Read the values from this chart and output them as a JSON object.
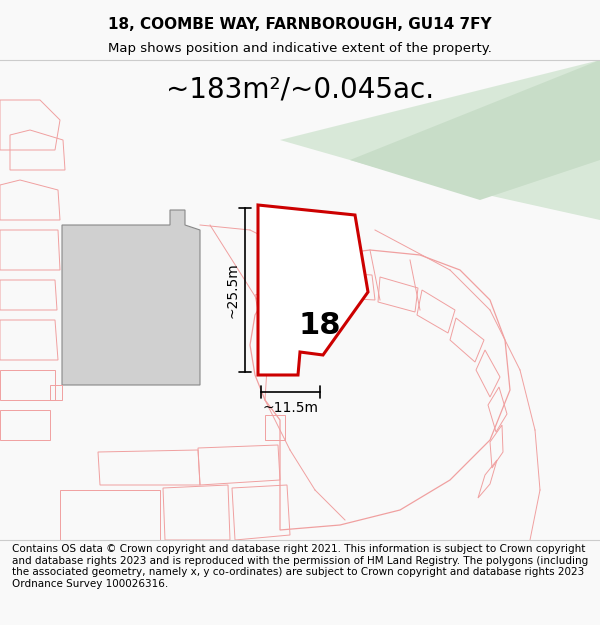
{
  "title_line1": "18, COOMBE WAY, FARNBOROUGH, GU14 7FY",
  "title_line2": "Map shows position and indicative extent of the property.",
  "area_text": "~183m²/~0.045ac.",
  "label_number": "18",
  "dim_height": "~25.5m",
  "dim_width": "~11.5m",
  "footer_text": "Contains OS data © Crown copyright and database right 2021. This information is subject to Crown copyright and database rights 2023 and is reproduced with the permission of HM Land Registry. The polygons (including the associated geometry, namely x, y co-ordinates) are subject to Crown copyright and database rights 2023 Ordnance Survey 100026316.",
  "bg_color": "#f9f9f9",
  "map_bg": "#ffffff",
  "road_green": "#d8e8d8",
  "plot_fill": "#ffffff",
  "plot_stroke": "#cc0000",
  "light_stroke": "#f0a0a0",
  "dark_stroke": "#888888",
  "building_fill": "#d0d0d0",
  "title_fontsize": 11,
  "area_fontsize": 20,
  "footer_fontsize": 7.5
}
